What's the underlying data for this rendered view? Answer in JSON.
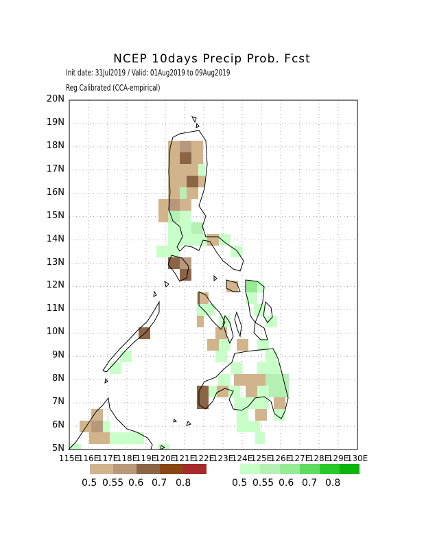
{
  "title": "NCEP 10days Precip Prob. Fcst",
  "subtitle1": "Init date: 31Jul2019 / Valid: 01Aug2019 to 09Aug2019",
  "subtitle2": "Reg Calibrated (CCA-empirical)",
  "axes": {
    "lat_labels": [
      "20N",
      "19N",
      "18N",
      "17N",
      "16N",
      "15N",
      "14N",
      "13N",
      "12N",
      "11N",
      "10N",
      "9N",
      "8N",
      "7N",
      "6N",
      "5N"
    ],
    "lon_labels": [
      "115E",
      "116E",
      "117E",
      "118E",
      "119E",
      "120E",
      "121E",
      "122E",
      "123E",
      "124E",
      "125E",
      "126E",
      "127E",
      "128E",
      "129E",
      "130E"
    ]
  },
  "legend": {
    "dry": {
      "colors": [
        "#d2b48c",
        "#b8987a",
        "#8c6446",
        "#8b4513",
        "#a52a2a"
      ],
      "labels": [
        "0.5",
        "0.55",
        "0.6",
        "0.7",
        "0.8"
      ]
    },
    "wet": {
      "colors": [
        "#c8ffc8",
        "#b4f0b4",
        "#96eb96",
        "#5fdc5f",
        "#28c828",
        "#0ab40a"
      ],
      "labels": [
        "0.5",
        "0.55",
        "0.6",
        "0.7",
        "0.8"
      ]
    }
  }
}
